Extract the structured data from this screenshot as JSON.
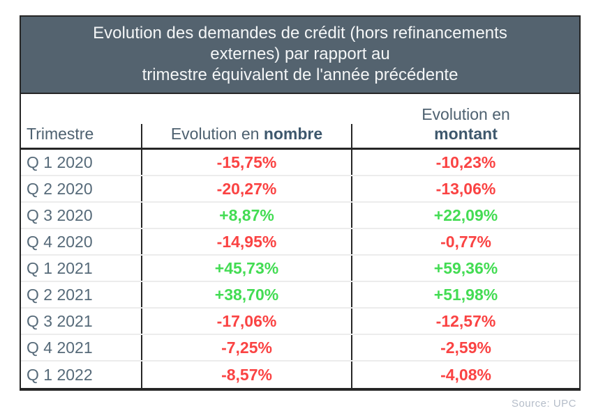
{
  "title": {
    "line1": "Evolution des demandes de crédit (hors refinancements",
    "line2": "externes) par rapport au",
    "line3": "trimestre équivalent de l'année précédente"
  },
  "table": {
    "headers": {
      "col1": "Trimestre",
      "col2_prefix": "Evolution en ",
      "col2_bold": "nombre",
      "col3_prefix": "Evolution en",
      "col3_bold": "montant"
    },
    "rows": [
      {
        "trimestre": "Q 1 2020",
        "nombre": "-15,75%",
        "montant": "-10,23%"
      },
      {
        "trimestre": "Q 2 2020",
        "nombre": "-20,27%",
        "montant": "-13,06%"
      },
      {
        "trimestre": "Q 3 2020",
        "nombre": "+8,87%",
        "montant": "+22,09%"
      },
      {
        "trimestre": "Q 4 2020",
        "nombre": "-14,95%",
        "montant": "-0,77%"
      },
      {
        "trimestre": "Q 1 2021",
        "nombre": "+45,73%",
        "montant": "+59,36%"
      },
      {
        "trimestre": "Q 2 2021",
        "nombre": "+38,70%",
        "montant": "+51,98%"
      },
      {
        "trimestre": "Q 3 2021",
        "nombre": "-17,06%",
        "montant": "-12,57%"
      },
      {
        "trimestre": "Q 4 2021",
        "nombre": "-7,25%",
        "montant": "-2,59%"
      },
      {
        "trimestre": "Q 1 2022",
        "nombre": "-8,57%",
        "montant": "-4,08%"
      }
    ]
  },
  "footer": {
    "source": "Source: UPC"
  },
  "colors": {
    "positive": "#43dc53",
    "negative": "#fa4343",
    "header_bg": "#54636f",
    "header_text": "#f4f6f7",
    "label_text": "#566a79",
    "border_dark": "#262626"
  },
  "chart_data": {
    "type": "table",
    "title": "Evolution des demandes de crédit (hors refinancements externes) par rapport au trimestre équivalent de l'année précédente",
    "categories": [
      "Q 1 2020",
      "Q 2 2020",
      "Q 3 2020",
      "Q 4 2020",
      "Q 1 2021",
      "Q 2 2021",
      "Q 3 2021",
      "Q 4 2021",
      "Q 1 2022"
    ],
    "series": [
      {
        "name": "Evolution en nombre",
        "values": [
          -15.75,
          -20.27,
          8.87,
          -14.95,
          45.73,
          38.7,
          -17.06,
          -7.25,
          -8.57
        ]
      },
      {
        "name": "Evolution en montant",
        "values": [
          -10.23,
          -13.06,
          22.09,
          -0.77,
          59.36,
          51.98,
          -12.57,
          -2.59,
          -4.08
        ]
      }
    ],
    "unit": "%",
    "source": "Source: UPC",
    "value_color_rule": "negative=red, positive=green"
  }
}
